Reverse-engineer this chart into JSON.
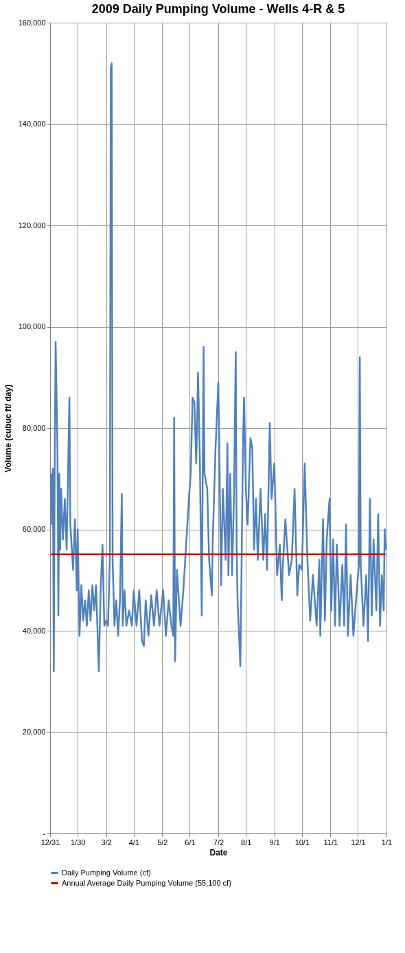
{
  "chart_data": {
    "type": "line",
    "title": "2009 Daily Pumping Volume - Wells 4-R & 5",
    "xlabel": "Date",
    "ylabel": "Volume (cubuc ft/ day)",
    "xlim": [
      "2008-12-31",
      "2010-01-01"
    ],
    "xticks": [
      {
        "value": "2008-12-31",
        "label": "12/31"
      },
      {
        "value": "2009-01-30",
        "label": "1/30"
      },
      {
        "value": "2009-03-02",
        "label": "3/2"
      },
      {
        "value": "2009-04-01",
        "label": "4/1"
      },
      {
        "value": "2009-05-02",
        "label": "5/2"
      },
      {
        "value": "2009-06-01",
        "label": "6/1"
      },
      {
        "value": "2009-07-02",
        "label": "7/2"
      },
      {
        "value": "2009-08-01",
        "label": "8/1"
      },
      {
        "value": "2009-09-01",
        "label": "9/1"
      },
      {
        "value": "2009-10-01",
        "label": "10/1"
      },
      {
        "value": "2009-11-01",
        "label": "11/1"
      },
      {
        "value": "2009-12-01",
        "label": "12/1"
      },
      {
        "value": "2010-01-01",
        "label": "1/1"
      }
    ],
    "ylim": [
      0,
      160000
    ],
    "yticks": [
      {
        "value": 0,
        "label": "-"
      },
      {
        "value": 20000,
        "label": "20,000"
      },
      {
        "value": 40000,
        "label": "40,000"
      },
      {
        "value": 60000,
        "label": "60,000"
      },
      {
        "value": 80000,
        "label": "80,000"
      },
      {
        "value": 100000,
        "label": "100,000"
      },
      {
        "value": 120000,
        "label": "120,000"
      },
      {
        "value": 140000,
        "label": "140,000"
      },
      {
        "value": 160000,
        "label": "160,000"
      }
    ],
    "grid": true,
    "legend": "bottom",
    "line_style": "solid",
    "marker": "none",
    "series": [
      {
        "name": "Daily Pumping Volume (cf)",
        "color": "#4f81bd",
        "x": [
          "2009-01-01",
          "2009-01-02",
          "2009-01-03",
          "2009-01-04",
          "2009-01-05",
          "2009-01-06",
          "2009-01-08",
          "2009-01-09",
          "2009-01-10",
          "2009-01-11",
          "2009-01-12",
          "2009-01-14",
          "2009-01-16",
          "2009-01-18",
          "2009-01-21",
          "2009-01-22",
          "2009-01-25",
          "2009-01-27",
          "2009-01-29",
          "2009-01-30",
          "2009-02-01",
          "2009-02-03",
          "2009-02-05",
          "2009-02-07",
          "2009-02-09",
          "2009-02-11",
          "2009-02-13",
          "2009-02-15",
          "2009-02-17",
          "2009-02-19",
          "2009-02-22",
          "2009-02-24",
          "2009-02-26",
          "2009-02-28",
          "2009-03-02",
          "2009-03-04",
          "2009-03-06",
          "2009-03-07",
          "2009-03-08",
          "2009-03-09",
          "2009-03-11",
          "2009-03-13",
          "2009-03-15",
          "2009-03-17",
          "2009-03-19",
          "2009-03-20",
          "2009-03-22",
          "2009-03-24",
          "2009-03-27",
          "2009-03-30",
          "2009-04-01",
          "2009-04-04",
          "2009-04-07",
          "2009-04-10",
          "2009-04-12",
          "2009-04-14",
          "2009-04-17",
          "2009-04-20",
          "2009-04-23",
          "2009-04-26",
          "2009-04-29",
          "2009-05-03",
          "2009-05-06",
          "2009-05-09",
          "2009-05-12",
          "2009-05-14",
          "2009-05-15",
          "2009-05-16",
          "2009-05-18",
          "2009-05-22",
          "2009-05-25",
          "2009-05-27",
          "2009-05-29",
          "2009-05-31",
          "2009-06-02",
          "2009-06-04",
          "2009-06-06",
          "2009-06-08",
          "2009-06-10",
          "2009-06-12",
          "2009-06-14",
          "2009-06-16",
          "2009-06-17",
          "2009-06-20",
          "2009-06-22",
          "2009-06-25",
          "2009-06-26",
          "2009-06-29",
          "2009-07-02",
          "2009-07-03",
          "2009-07-05",
          "2009-07-07",
          "2009-07-10",
          "2009-07-12",
          "2009-07-13",
          "2009-07-15",
          "2009-07-17",
          "2009-07-19",
          "2009-07-21",
          "2009-07-22",
          "2009-07-23",
          "2009-07-26",
          "2009-07-27",
          "2009-07-29",
          "2009-07-30",
          "2009-08-01",
          "2009-08-03",
          "2009-08-06",
          "2009-08-08",
          "2009-08-10",
          "2009-08-12",
          "2009-08-14",
          "2009-08-17",
          "2009-08-20",
          "2009-08-22",
          "2009-08-24",
          "2009-08-27",
          "2009-08-29",
          "2009-09-01",
          "2009-09-04",
          "2009-09-07",
          "2009-09-09",
          "2009-09-10",
          "2009-09-13",
          "2009-09-17",
          "2009-09-20",
          "2009-09-23",
          "2009-09-26",
          "2009-09-28",
          "2009-10-01",
          "2009-10-04",
          "2009-10-07",
          "2009-10-10",
          "2009-10-13",
          "2009-10-17",
          "2009-10-20",
          "2009-10-21",
          "2009-10-24",
          "2009-10-26",
          "2009-10-28",
          "2009-10-31",
          "2009-11-02",
          "2009-11-04",
          "2009-11-06",
          "2009-11-08",
          "2009-11-11",
          "2009-11-14",
          "2009-11-16",
          "2009-11-18",
          "2009-11-20",
          "2009-11-23",
          "2009-11-26",
          "2009-11-28",
          "2009-12-02",
          "2009-12-03",
          "2009-12-04",
          "2009-12-07",
          "2009-12-10",
          "2009-12-12",
          "2009-12-14",
          "2009-12-16",
          "2009-12-18",
          "2009-12-21",
          "2009-12-23",
          "2009-12-25",
          "2009-12-27",
          "2009-12-29",
          "2009-12-30",
          "2009-12-31"
        ],
        "values": [
          71000,
          61000,
          72000,
          32000,
          73000,
          97000,
          76000,
          43000,
          71000,
          56000,
          68000,
          58000,
          66000,
          56000,
          86000,
          61000,
          52000,
          62000,
          48000,
          60000,
          39000,
          49000,
          42000,
          46000,
          41000,
          48000,
          42000,
          49000,
          44000,
          49000,
          32000,
          48000,
          57000,
          41000,
          42000,
          41000,
          54000,
          151000,
          152000,
          54000,
          41000,
          46000,
          39000,
          46000,
          67000,
          41000,
          48000,
          41000,
          44000,
          41000,
          48000,
          41000,
          48000,
          38000,
          37000,
          46000,
          39000,
          47000,
          41000,
          48000,
          41000,
          48000,
          39000,
          46000,
          41000,
          39000,
          82000,
          34000,
          52000,
          41000,
          48000,
          54000,
          60000,
          66000,
          71000,
          86000,
          85000,
          73000,
          91000,
          73000,
          43000,
          96000,
          71000,
          68000,
          54000,
          47000,
          58000,
          76000,
          89000,
          78000,
          49000,
          68000,
          54000,
          77000,
          51000,
          71000,
          51000,
          66000,
          95000,
          56000,
          46000,
          33000,
          48000,
          78000,
          86000,
          68000,
          61000,
          78000,
          76000,
          56000,
          66000,
          54000,
          68000,
          54000,
          63000,
          52000,
          81000,
          66000,
          73000,
          51000,
          57000,
          46000,
          52000,
          62000,
          51000,
          54000,
          68000,
          47000,
          53000,
          52000,
          73000,
          54000,
          42000,
          51000,
          41000,
          54000,
          39000,
          62000,
          42000,
          58000,
          66000,
          44000,
          58000,
          41000,
          57000,
          41000,
          53000,
          41000,
          61000,
          39000,
          51000,
          39000,
          44000,
          53000,
          94000,
          53000,
          41000,
          51000,
          38000,
          66000,
          43000,
          58000,
          44000,
          63000,
          41000,
          51000,
          44000,
          60000,
          56000
        ]
      },
      {
        "name": "Annual Average Daily Pumping Volume (55,100 cf)",
        "color": "#c00000",
        "x": [
          "2009-01-01",
          "2009-12-31"
        ],
        "values": [
          55100,
          55100
        ]
      }
    ]
  }
}
